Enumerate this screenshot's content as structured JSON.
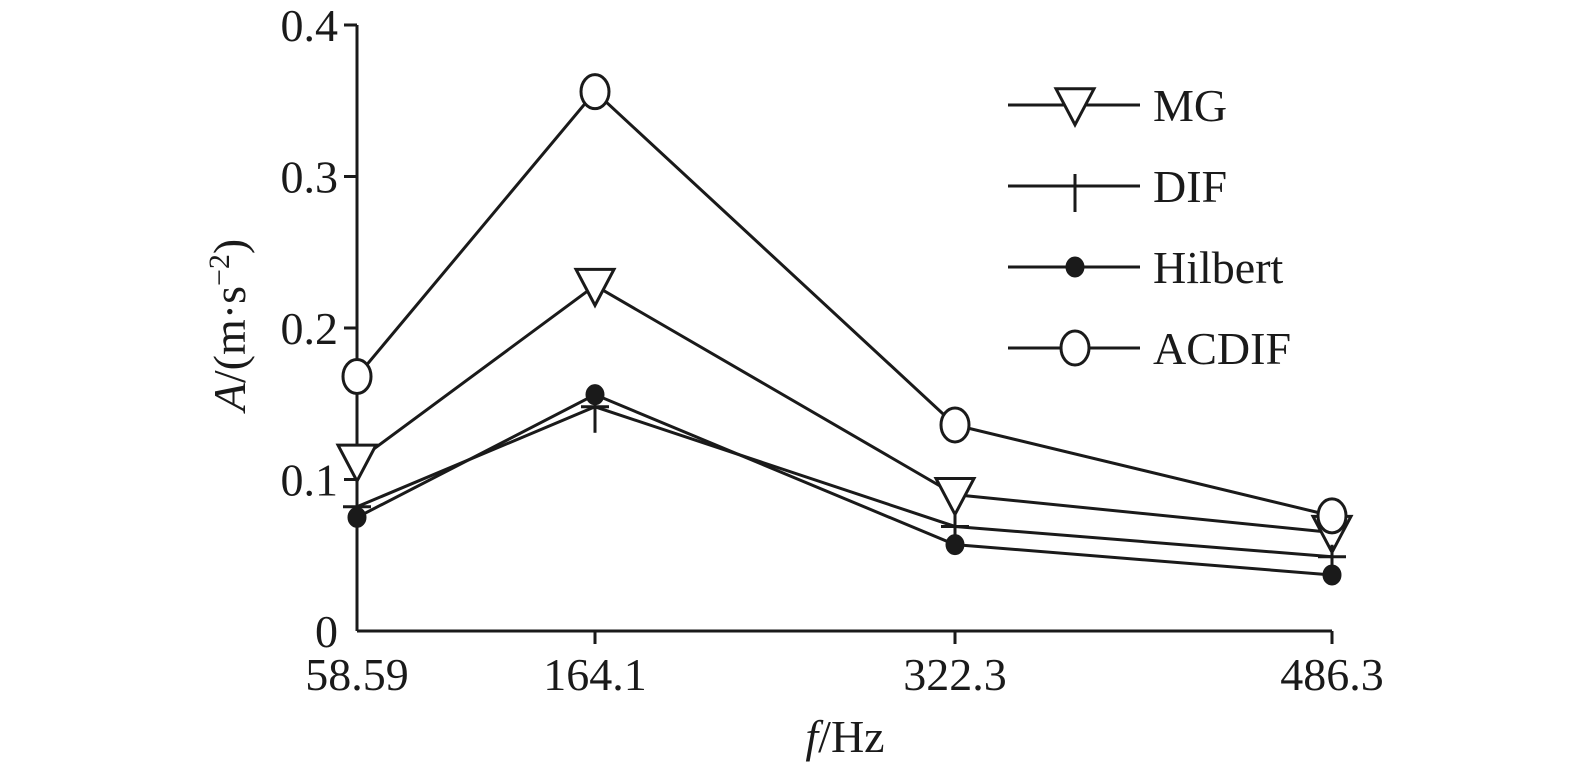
{
  "chart_data": {
    "type": "line",
    "x": [
      58.59,
      164.1,
      322.3,
      486.3
    ],
    "x_tick_labels": [
      "58.59",
      "164.1",
      "322.3",
      "486.3"
    ],
    "y_ticks": [
      0,
      0.1,
      0.2,
      0.3,
      0.4
    ],
    "y_tick_labels": [
      "0",
      "0.1",
      "0.2",
      "0.3",
      "0.4"
    ],
    "ylim": [
      0,
      0.4
    ],
    "xlabel": {
      "italic": "f",
      "rest": "/Hz"
    },
    "ylabel": {
      "italic": "A",
      "rest": "/(m·s",
      "sup": "−2",
      "close": ")"
    },
    "grid": false,
    "legend_position": "top-right",
    "series": [
      {
        "name": "MG",
        "marker": "triangle-down-open",
        "values": [
          0.112,
          0.228,
          0.09,
          0.065
        ]
      },
      {
        "name": "DIF",
        "marker": "plus",
        "values": [
          0.082,
          0.148,
          0.069,
          0.049
        ]
      },
      {
        "name": "Hilbert",
        "marker": "filled-circle",
        "values": [
          0.075,
          0.156,
          0.057,
          0.037
        ]
      },
      {
        "name": "ACDIF",
        "marker": "open-circle",
        "values": [
          0.168,
          0.356,
          0.136,
          0.076
        ]
      }
    ],
    "line_color": "#1a1a1a"
  }
}
